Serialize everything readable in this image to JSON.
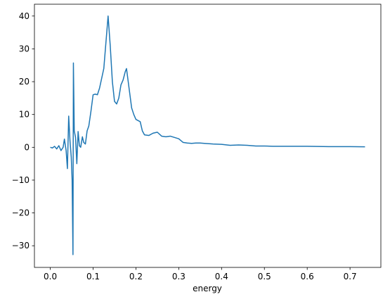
{
  "chart_data": {
    "type": "line",
    "x_label": "energy",
    "x": [
      0.0,
      0.005,
      0.01,
      0.015,
      0.02,
      0.025,
      0.03,
      0.033,
      0.037,
      0.04,
      0.043,
      0.046,
      0.049,
      0.051,
      0.053,
      0.054,
      0.056,
      0.059,
      0.062,
      0.065,
      0.068,
      0.071,
      0.075,
      0.078,
      0.082,
      0.086,
      0.09,
      0.095,
      0.1,
      0.105,
      0.11,
      0.115,
      0.12,
      0.125,
      0.13,
      0.135,
      0.14,
      0.145,
      0.15,
      0.155,
      0.16,
      0.165,
      0.17,
      0.175,
      0.178,
      0.182,
      0.186,
      0.19,
      0.195,
      0.2,
      0.21,
      0.215,
      0.22,
      0.23,
      0.24,
      0.25,
      0.26,
      0.27,
      0.28,
      0.29,
      0.3,
      0.31,
      0.32,
      0.33,
      0.34,
      0.35,
      0.36,
      0.38,
      0.4,
      0.42,
      0.44,
      0.46,
      0.48,
      0.5,
      0.52,
      0.55,
      0.6,
      0.65,
      0.7,
      0.735
    ],
    "series": [
      {
        "color": "#1f77b4",
        "values": [
          0,
          -0.2,
          0.3,
          -0.5,
          0.5,
          -1,
          0,
          2.5,
          -1,
          -6.5,
          9.5,
          2,
          -3,
          -10,
          -32.7,
          25.7,
          5,
          3,
          -5,
          4.8,
          0.5,
          0,
          3.2,
          1.5,
          1,
          5,
          6.5,
          11,
          16,
          16.2,
          16,
          18,
          21,
          24,
          32,
          40,
          31,
          20,
          14,
          13.2,
          15,
          19,
          20.5,
          23,
          24,
          20,
          16,
          12,
          10,
          8.5,
          7.8,
          5,
          3.8,
          3.6,
          4.3,
          4.6,
          3.4,
          3.2,
          3.4,
          3,
          2.6,
          1.5,
          1.3,
          1.2,
          1.3,
          1.3,
          1.2,
          1.0,
          0.9,
          0.6,
          0.7,
          0.6,
          0.4,
          0.4,
          0.3,
          0.3,
          0.3,
          0.2,
          0.2,
          0.15
        ]
      }
    ],
    "xlim": [
      -0.037,
      0.772
    ],
    "ylim": [
      -36.6,
      43.6
    ],
    "xticks": [
      {
        "value": 0,
        "label": "0.0"
      },
      0.1,
      0.2,
      0.3,
      0.4,
      0.5,
      0.6,
      0.7
    ],
    "yticks": [
      {
        "value": -30,
        "label": "−30"
      },
      {
        "value": -20,
        "label": "−20"
      },
      {
        "value": -10,
        "label": "−10"
      },
      0,
      10,
      20,
      30,
      40
    ],
    "grid": false
  }
}
